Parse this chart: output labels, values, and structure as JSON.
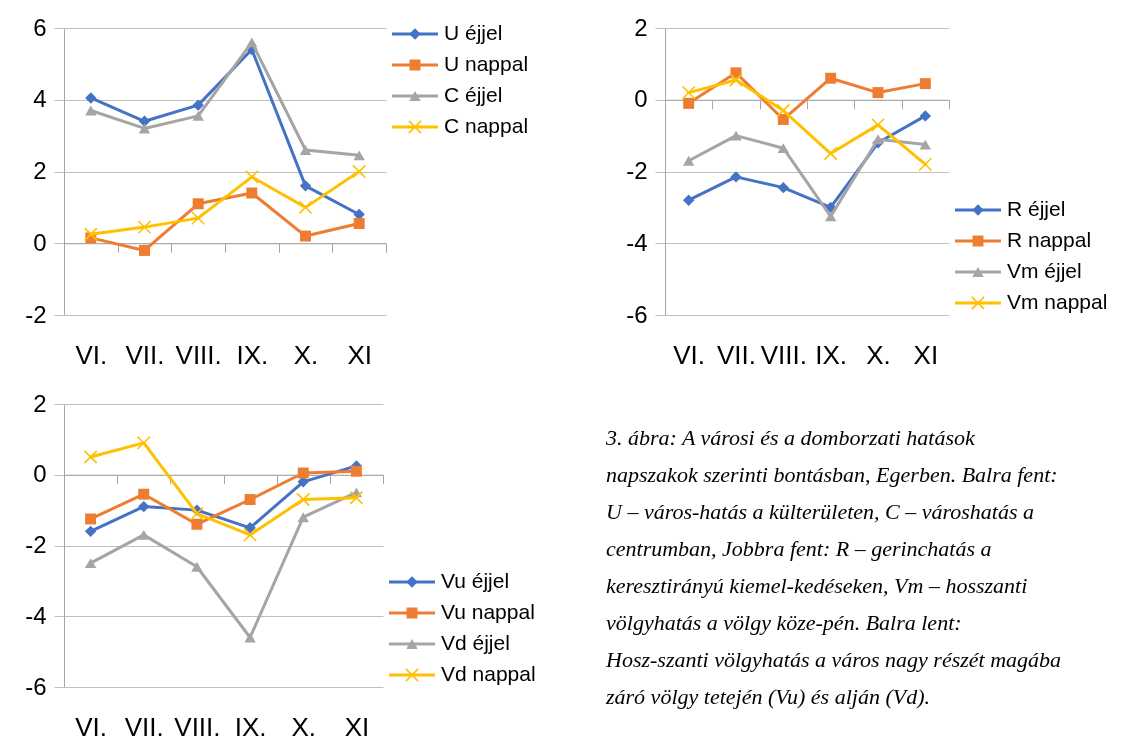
{
  "chart_data": [
    {
      "type": "line",
      "categories": [
        "VI.",
        "VII.",
        "VIII.",
        "IX.",
        "X.",
        "XI"
      ],
      "series": [
        {
          "name": "U éjjel",
          "color": "#4472c4",
          "marker": "diamond",
          "values": [
            4.05,
            3.4,
            3.85,
            5.4,
            1.6,
            0.8
          ]
        },
        {
          "name": "U nappal",
          "color": "#ed7d31",
          "marker": "square",
          "values": [
            0.15,
            -0.2,
            1.1,
            1.4,
            0.2,
            0.55
          ]
        },
        {
          "name": "C éjjel",
          "color": "#a5a5a5",
          "marker": "triangle",
          "values": [
            3.7,
            3.2,
            3.55,
            5.6,
            2.6,
            2.45
          ]
        },
        {
          "name": "C nappal",
          "color": "#ffc000",
          "marker": "cross",
          "values": [
            0.25,
            0.45,
            0.7,
            1.85,
            1.0,
            2.0
          ]
        }
      ],
      "ylim": [
        -2,
        6
      ],
      "yticks": [
        -2,
        0,
        2,
        4,
        6
      ],
      "grid": "y",
      "legend": "top right"
    },
    {
      "type": "line",
      "categories": [
        "VI.",
        "VII.",
        "VIII.",
        "IX.",
        "X.",
        "XI"
      ],
      "series": [
        {
          "name": "R éjjel",
          "color": "#4472c4",
          "marker": "diamond",
          "values": [
            -2.8,
            -2.15,
            -2.45,
            -3.0,
            -1.2,
            -0.45
          ]
        },
        {
          "name": "R nappal",
          "color": "#ed7d31",
          "marker": "square",
          "values": [
            -0.1,
            0.75,
            -0.55,
            0.6,
            0.2,
            0.45
          ]
        },
        {
          "name": "Vm éjjel",
          "color": "#a5a5a5",
          "marker": "triangle",
          "values": [
            -1.7,
            -1.0,
            -1.35,
            -3.25,
            -1.1,
            -1.25
          ]
        },
        {
          "name": "Vm nappal",
          "color": "#ffc000",
          "marker": "cross",
          "values": [
            0.2,
            0.55,
            -0.3,
            -1.5,
            -0.7,
            -1.8
          ]
        }
      ],
      "ylim": [
        -6,
        2
      ],
      "yticks": [
        -6,
        -4,
        -2,
        0,
        2
      ],
      "grid": "y",
      "legend": "bottom right"
    },
    {
      "type": "line",
      "categories": [
        "VI.",
        "VII.",
        "VIII.",
        "IX.",
        "X.",
        "XI"
      ],
      "series": [
        {
          "name": "Vu éjjel",
          "color": "#4472c4",
          "marker": "diamond",
          "values": [
            -1.6,
            -0.9,
            -1.0,
            -1.5,
            -0.2,
            0.25
          ]
        },
        {
          "name": "Vu nappal",
          "color": "#ed7d31",
          "marker": "square",
          "values": [
            -1.25,
            -0.55,
            -1.4,
            -0.7,
            0.05,
            0.1
          ]
        },
        {
          "name": "Vd éjjel",
          "color": "#a5a5a5",
          "marker": "triangle",
          "values": [
            -2.5,
            -1.7,
            -2.6,
            -4.6,
            -1.2,
            -0.5
          ]
        },
        {
          "name": "Vd nappal",
          "color": "#ffc000",
          "marker": "cross",
          "values": [
            0.5,
            0.9,
            -1.1,
            -1.7,
            -0.7,
            -0.65
          ]
        }
      ],
      "ylim": [
        -6,
        2
      ],
      "yticks": [
        -6,
        -4,
        -2,
        0,
        2
      ],
      "grid": "y",
      "legend": "bottom right"
    },
    {
      "type": "other",
      "annotations": [
        "3. ábra: A városi és a domborzati hatások napszakok szerinti bontásban, Egerben. Balra fent: U – város-hatás a külterületen, C – városhatás a centrumban, Jobbra fent: R – gerinchatás a keresztirányú kiemel-kedéseken, Vm – hosszanti völgyhatás a völgy köze-pén. Balra lent: Hosz-szanti völgyhatás a város nagy részét magába záró völgy tetején (Vu) és alján (Vd)."
      ]
    }
  ]
}
